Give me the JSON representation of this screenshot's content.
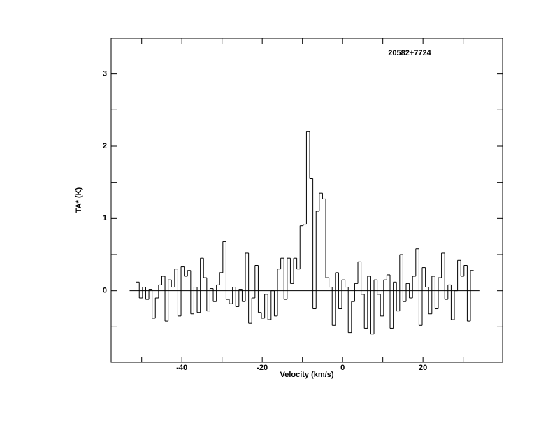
{
  "chart_data": {
    "type": "step",
    "title": "20582+7724",
    "xlabel": "Velocity (km/s)",
    "ylabel": "TA* (K)",
    "xlim": [
      -57.6,
      39.8
    ],
    "ylim": [
      -0.99,
      3.49
    ],
    "xticks": [
      -40,
      -20,
      0,
      20
    ],
    "yticks": [
      0,
      1,
      2,
      3
    ],
    "xminor": [
      -50,
      -30,
      -10,
      10,
      30
    ],
    "yminor": [
      -0.5,
      0.5,
      1.5,
      2.5
    ],
    "color": "#000000",
    "x": [
      -51.0,
      -50.2,
      -49.4,
      -48.6,
      -47.8,
      -47.0,
      -46.2,
      -45.4,
      -44.6,
      -43.8,
      -43.0,
      -42.2,
      -41.4,
      -40.6,
      -39.8,
      -39.0,
      -38.2,
      -37.4,
      -36.6,
      -35.8,
      -35.0,
      -34.2,
      -33.4,
      -32.6,
      -31.8,
      -31.0,
      -30.2,
      -29.4,
      -28.6,
      -27.8,
      -27.0,
      -26.2,
      -25.4,
      -24.6,
      -23.8,
      -23.0,
      -22.2,
      -21.4,
      -20.6,
      -19.8,
      -19.0,
      -18.2,
      -17.4,
      -16.6,
      -15.8,
      -15.0,
      -14.2,
      -13.4,
      -12.6,
      -11.8,
      -11.0,
      -10.2,
      -9.4,
      -8.6,
      -7.8,
      -7.0,
      -6.2,
      -5.4,
      -4.6,
      -3.8,
      -3.0,
      -2.2,
      -1.4,
      -0.6,
      0.2,
      1.0,
      1.8,
      2.6,
      3.4,
      4.2,
      5.0,
      5.8,
      6.6,
      7.4,
      8.2,
      9.0,
      9.8,
      10.6,
      11.4,
      12.2,
      13.0,
      13.8,
      14.6,
      15.4,
      16.2,
      17.0,
      17.8,
      18.6,
      19.4,
      20.2,
      21.0,
      21.8,
      22.6,
      23.4,
      24.2,
      25.0,
      25.8,
      26.6,
      27.4,
      28.2,
      29.0,
      29.8,
      30.6,
      31.4,
      32.2
    ],
    "values": [
      0.12,
      -0.1,
      0.05,
      -0.12,
      0.02,
      -0.38,
      -0.1,
      0.08,
      0.2,
      -0.42,
      0.15,
      0.05,
      0.3,
      -0.35,
      0.33,
      0.2,
      0.28,
      -0.32,
      0.05,
      -0.3,
      0.45,
      0.18,
      -0.28,
      0.03,
      -0.15,
      0.08,
      0.25,
      0.68,
      -0.12,
      -0.18,
      0.05,
      -0.22,
      0.02,
      -0.15,
      0.52,
      -0.45,
      -0.1,
      0.35,
      -0.3,
      -0.38,
      -0.05,
      -0.4,
      0.0,
      -0.35,
      0.3,
      0.45,
      -0.12,
      0.45,
      0.1,
      0.45,
      0.3,
      0.9,
      0.92,
      2.2,
      1.55,
      -0.25,
      1.1,
      1.35,
      1.27,
      0.18,
      0.05,
      -0.48,
      0.25,
      -0.25,
      0.15,
      0.05,
      -0.58,
      -0.15,
      0.1,
      0.4,
      -0.05,
      -0.52,
      0.2,
      -0.6,
      0.15,
      -0.05,
      -0.35,
      0.15,
      0.22,
      -0.52,
      0.12,
      -0.28,
      0.5,
      -0.15,
      0.1,
      -0.1,
      0.2,
      0.58,
      -0.48,
      0.32,
      0.05,
      -0.32,
      0.2,
      -0.25,
      0.18,
      0.52,
      -0.12,
      0.08,
      -0.4,
      0.0,
      0.42,
      0.2,
      0.35,
      -0.42,
      0.28
    ]
  }
}
